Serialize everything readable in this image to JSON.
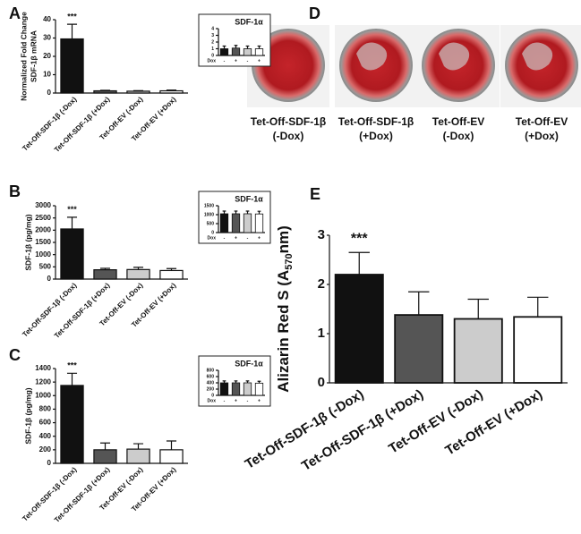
{
  "chart_data": [
    {
      "type": "bar",
      "panel": "A",
      "ylabel": [
        "Normalized Fold Change",
        "SDF-1β mRNA"
      ],
      "categories": [
        "Tet-Off-SDF-1β (-Dox)",
        "Tet-Off-SDF-1β (+Dox)",
        "Tet-Off-EV (-Dox)",
        "Tet-Off-EV (+Dox)"
      ],
      "values": [
        29.5,
        1.2,
        1.0,
        1.2
      ],
      "errors": [
        8,
        0.3,
        0.3,
        0.4
      ],
      "colors": [
        "#111111",
        "#555555",
        "#cccccc",
        "#ffffff"
      ],
      "ylim": [
        0,
        40
      ],
      "yticks": [
        0,
        10,
        20,
        30,
        40
      ],
      "annotation": "***",
      "inset": {
        "title": "SDF-1α",
        "xlabel": "Dox",
        "categories": [
          "-",
          "+",
          "-",
          "+"
        ],
        "values": [
          1.0,
          1.1,
          1.0,
          1.0
        ],
        "errors": [
          0.4,
          0.4,
          0.4,
          0.4
        ],
        "ylim": [
          0,
          4
        ],
        "yticks": [
          0,
          1,
          2,
          3,
          4
        ]
      }
    },
    {
      "type": "bar",
      "panel": "B",
      "ylabel": [
        "SDF-1β (pg/mg)"
      ],
      "categories": [
        "Tet-Off-SDF-1β (-Dox)",
        "Tet-Off-SDF-1β (+Dox)",
        "Tet-Off-EV (-Dox)",
        "Tet-Off-EV (+Dox)"
      ],
      "values": [
        2050,
        380,
        390,
        350
      ],
      "errors": [
        480,
        60,
        90,
        80
      ],
      "colors": [
        "#111111",
        "#555555",
        "#cccccc",
        "#ffffff"
      ],
      "ylim": [
        0,
        3000
      ],
      "yticks": [
        0,
        500,
        1000,
        1500,
        2000,
        2500,
        3000
      ],
      "annotation": "***",
      "inset": {
        "title": "SDF-1α",
        "xlabel": "Dox",
        "categories": [
          "-",
          "+",
          "-",
          "+"
        ],
        "values": [
          1050,
          1050,
          1050,
          1040
        ],
        "errors": [
          150,
          150,
          150,
          150
        ],
        "ylim": [
          0,
          1500
        ],
        "yticks": [
          0,
          500,
          1000,
          1500
        ]
      }
    },
    {
      "type": "bar",
      "panel": "C",
      "ylabel": [
        "SDF-1β (pg/mg)"
      ],
      "categories": [
        "Tet-Off-SDF-1β (-Dox)",
        "Tet-Off-SDF-1β (+Dox)",
        "Tet-Off-EV (-Dox)",
        "Tet-Off-EV (+Dox)"
      ],
      "values": [
        1150,
        200,
        210,
        200
      ],
      "errors": [
        180,
        100,
        80,
        130
      ],
      "colors": [
        "#111111",
        "#555555",
        "#cccccc",
        "#ffffff"
      ],
      "ylim": [
        0,
        1400
      ],
      "yticks": [
        0,
        200,
        400,
        600,
        800,
        1000,
        1200,
        1400
      ],
      "annotation": "***",
      "inset": {
        "title": "SDF-1α",
        "xlabel": "Dox",
        "categories": [
          "-",
          "+",
          "-",
          "+"
        ],
        "values": [
          400,
          400,
          400,
          390
        ],
        "errors": [
          60,
          60,
          60,
          60
        ],
        "ylim": [
          0,
          800
        ],
        "yticks": [
          0,
          200,
          400,
          600,
          800
        ]
      }
    },
    {
      "type": "bar",
      "panel": "E",
      "ylabel": [
        "Alizarin Red S (A",
        "570",
        "nm)"
      ],
      "categories": [
        "Tet-Off-SDF-1β (-Dox)",
        "Tet-Off-SDF-1β (+Dox)",
        "Tet-Off-EV (-Dox)",
        "Tet-Off-EV (+Dox)"
      ],
      "values": [
        2.2,
        1.38,
        1.3,
        1.34
      ],
      "errors": [
        0.45,
        0.47,
        0.4,
        0.4
      ],
      "colors": [
        "#111111",
        "#555555",
        "#cccccc",
        "#ffffff"
      ],
      "ylim": [
        0,
        3
      ],
      "yticks": [
        0,
        1,
        2,
        3
      ],
      "annotation": "***"
    }
  ],
  "photos": {
    "panel": "D",
    "captions": [
      [
        "Tet-Off-SDF-1β",
        "(-Dox)"
      ],
      [
        "Tet-Off-SDF-1β",
        "(+Dox)"
      ],
      [
        "Tet-Off-EV",
        "(-Dox)"
      ],
      [
        "Tet-Off-EV",
        "(+Dox)"
      ]
    ]
  }
}
